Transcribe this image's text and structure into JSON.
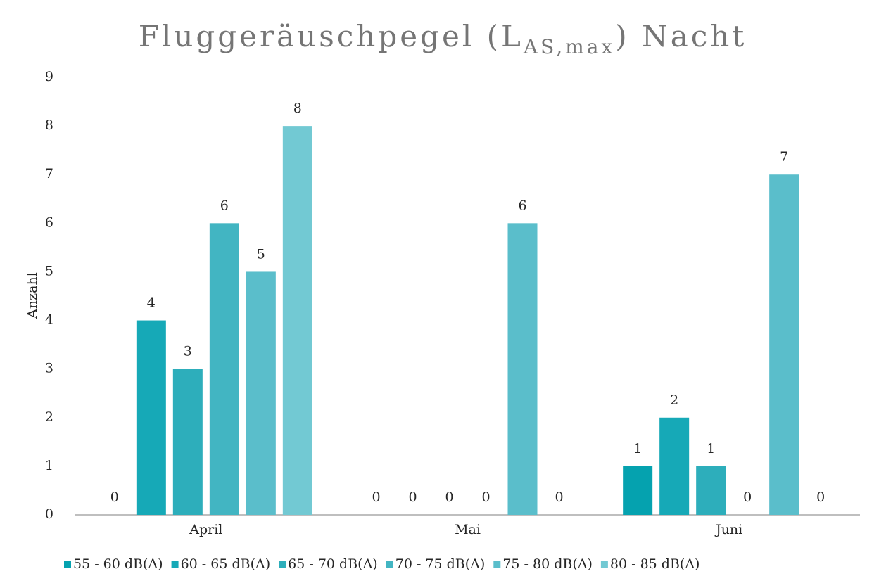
{
  "chart_data": {
    "type": "bar",
    "title": [
      "Fluggeräuschpegel (L",
      "AS,max",
      ") Nacht"
    ],
    "y_label": "Anzahl",
    "categories": [
      "April",
      "Mai",
      "Juni"
    ],
    "series": [
      {
        "name": "55 - 60 dB(A)",
        "color": "#05a2af",
        "values": [
          0,
          0,
          1
        ]
      },
      {
        "name": "60 - 65 dB(A)",
        "color": "#16a9b7",
        "values": [
          4,
          0,
          2
        ]
      },
      {
        "name": "65 - 70 dB(A)",
        "color": "#2daebb",
        "values": [
          3,
          0,
          1
        ]
      },
      {
        "name": "70 - 75 dB(A)",
        "color": "#42b5c2",
        "values": [
          6,
          0,
          0
        ]
      },
      {
        "name": "75 - 80 dB(A)",
        "color": "#5abecb",
        "values": [
          5,
          6,
          7
        ]
      },
      {
        "name": "80 - 85 dB(A)",
        "color": "#72c9d3",
        "values": [
          8,
          0,
          0
        ]
      }
    ],
    "ylim": [
      0,
      9
    ],
    "yticks": [
      0,
      1,
      2,
      3,
      4,
      5,
      6,
      7,
      8,
      9
    ],
    "grid": false,
    "legend": "bottom"
  }
}
